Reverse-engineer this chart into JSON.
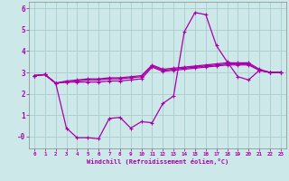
{
  "bg_color": "#cce8e8",
  "grid_color": "#aacccc",
  "line_color": "#aa00aa",
  "xlabel": "Windchill (Refroidissement éolien,°C)",
  "xlim": [
    -0.5,
    23.5
  ],
  "ylim": [
    -0.55,
    6.3
  ],
  "xtick_vals": [
    0,
    1,
    2,
    3,
    4,
    5,
    6,
    7,
    8,
    9,
    10,
    11,
    12,
    13,
    14,
    15,
    16,
    17,
    18,
    19,
    20,
    21,
    22,
    23
  ],
  "ytick_vals": [
    0,
    1,
    2,
    3,
    4,
    5,
    6
  ],
  "ytick_labels": [
    "-0",
    "1",
    "2",
    "3",
    "4",
    "5",
    "6"
  ],
  "line1_x": [
    0,
    1,
    2,
    3,
    4,
    5,
    6,
    7,
    8,
    9,
    10,
    11,
    12,
    13,
    14,
    15,
    16,
    17,
    18,
    19,
    20,
    21,
    22,
    23
  ],
  "line1_y": [
    2.85,
    2.9,
    2.5,
    2.55,
    2.55,
    2.55,
    2.55,
    2.6,
    2.6,
    2.65,
    2.7,
    3.25,
    3.05,
    3.1,
    3.15,
    3.2,
    3.25,
    3.3,
    3.35,
    3.35,
    3.35,
    3.1,
    3.0,
    3.0
  ],
  "line2_x": [
    0,
    1,
    2,
    3,
    4,
    5,
    6,
    7,
    8,
    9,
    10,
    11,
    12,
    13,
    14,
    15,
    16,
    17,
    18,
    19,
    20,
    21,
    22,
    23
  ],
  "line2_y": [
    2.85,
    2.9,
    2.5,
    0.4,
    -0.05,
    -0.05,
    -0.1,
    0.85,
    0.9,
    0.4,
    0.7,
    0.65,
    1.55,
    1.9,
    4.9,
    5.8,
    5.7,
    4.25,
    3.5,
    2.8,
    2.65,
    3.1,
    3.0,
    3.0
  ],
  "line3_x": [
    0,
    1,
    2,
    3,
    4,
    5,
    6,
    7,
    8,
    9,
    10,
    11,
    12,
    13,
    14,
    15,
    16,
    17,
    18,
    19,
    20,
    21,
    22,
    23
  ],
  "line3_y": [
    2.85,
    2.9,
    2.5,
    2.55,
    2.6,
    2.65,
    2.65,
    2.7,
    2.7,
    2.75,
    2.8,
    3.3,
    3.1,
    3.15,
    3.2,
    3.25,
    3.3,
    3.35,
    3.4,
    3.4,
    3.4,
    3.1,
    3.0,
    3.0
  ],
  "line4_x": [
    0,
    1,
    2,
    3,
    4,
    5,
    6,
    7,
    8,
    9,
    10,
    11,
    12,
    13,
    14,
    15,
    16,
    17,
    18,
    19,
    20,
    21,
    22,
    23
  ],
  "line4_y": [
    2.85,
    2.9,
    2.5,
    2.6,
    2.65,
    2.7,
    2.7,
    2.75,
    2.75,
    2.8,
    2.85,
    3.35,
    3.15,
    3.2,
    3.25,
    3.3,
    3.35,
    3.4,
    3.45,
    3.45,
    3.45,
    3.15,
    3.0,
    3.0
  ]
}
